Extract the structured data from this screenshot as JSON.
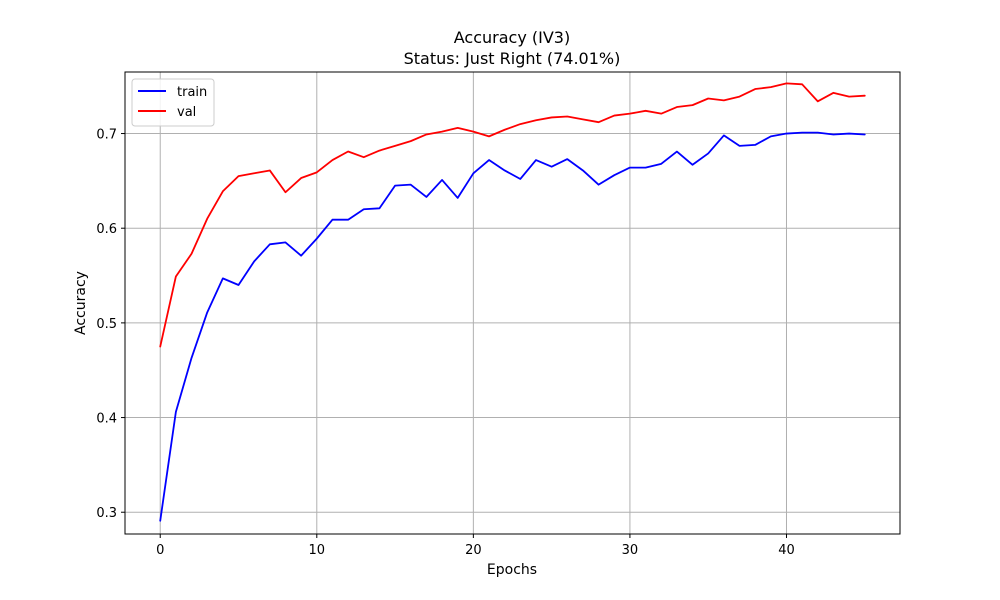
{
  "chart_data": {
    "type": "line",
    "title": "Accuracy (IV3)",
    "subtitle": "Status: Just Right (74.01%)",
    "xlabel": "Epochs",
    "ylabel": "Accuracy",
    "xlim": [
      -2.25,
      47.25
    ],
    "ylim": [
      0.277,
      0.765
    ],
    "xticks": [
      0,
      10,
      20,
      30,
      40
    ],
    "yticks": [
      0.3,
      0.4,
      0.5,
      0.6,
      0.7
    ],
    "ytick_labels": [
      "0.3",
      "0.4",
      "0.5",
      "0.6",
      "0.7"
    ],
    "grid": true,
    "legend_position": "top-left",
    "x": [
      0,
      1,
      2,
      3,
      4,
      5,
      6,
      7,
      8,
      9,
      10,
      11,
      12,
      13,
      14,
      15,
      16,
      17,
      18,
      19,
      20,
      21,
      22,
      23,
      24,
      25,
      26,
      27,
      28,
      29,
      30,
      31,
      32,
      33,
      34,
      35,
      36,
      37,
      38,
      39,
      40,
      41,
      42,
      43,
      44,
      45
    ],
    "series": [
      {
        "name": "train",
        "color": "#0000ff",
        "values": [
          0.291,
          0.406,
          0.463,
          0.511,
          0.547,
          0.54,
          0.565,
          0.583,
          0.585,
          0.571,
          0.589,
          0.609,
          0.609,
          0.62,
          0.621,
          0.645,
          0.646,
          0.633,
          0.651,
          0.632,
          0.658,
          0.672,
          0.661,
          0.652,
          0.672,
          0.665,
          0.673,
          0.661,
          0.646,
          0.656,
          0.664,
          0.664,
          0.668,
          0.681,
          0.667,
          0.679,
          0.698,
          0.687,
          0.688,
          0.697,
          0.7,
          0.701,
          0.701,
          0.699,
          0.7,
          0.699
        ]
      },
      {
        "name": "val",
        "color": "#ff0000",
        "values": [
          0.475,
          0.549,
          0.573,
          0.61,
          0.639,
          0.655,
          0.658,
          0.661,
          0.638,
          0.653,
          0.659,
          0.672,
          0.681,
          0.675,
          0.682,
          0.687,
          0.692,
          0.699,
          0.702,
          0.706,
          0.702,
          0.697,
          0.704,
          0.71,
          0.714,
          0.717,
          0.718,
          0.715,
          0.712,
          0.719,
          0.721,
          0.724,
          0.721,
          0.728,
          0.73,
          0.737,
          0.735,
          0.739,
          0.747,
          0.749,
          0.753,
          0.752,
          0.734,
          0.743,
          0.739,
          0.74
        ]
      }
    ]
  }
}
